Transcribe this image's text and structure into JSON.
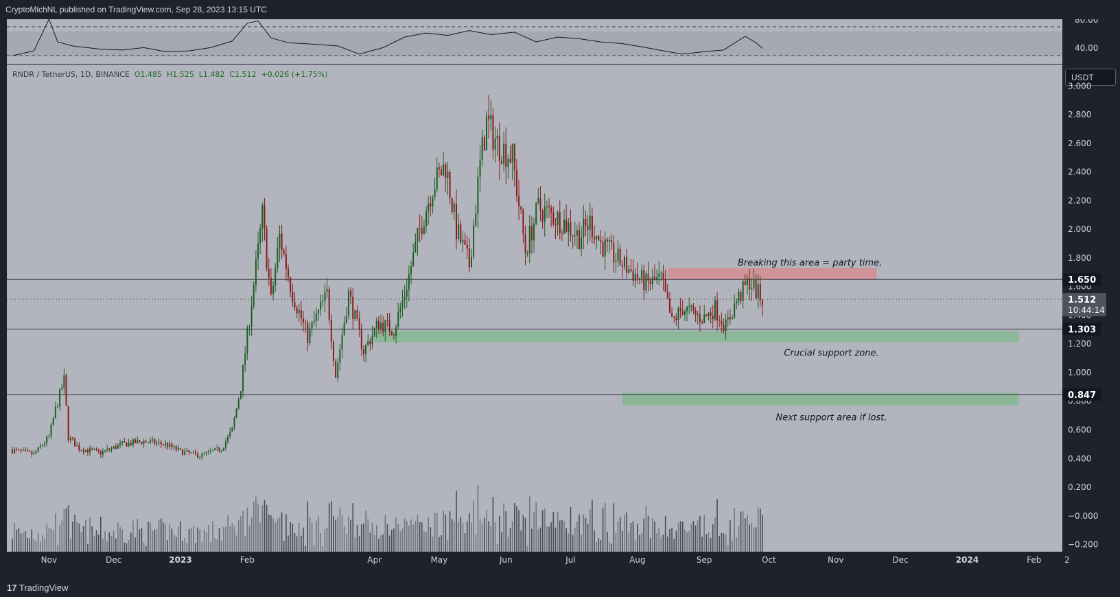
{
  "header": {
    "published": "CryptoMichNL published on TradingView.com, Sep 28, 2023 13:15 UTC"
  },
  "footer": {
    "brand": "TradingView"
  },
  "legend": {
    "symbol": "RNDR / TetherUS, 1D, BINANCE",
    "open": "O1.485",
    "high": "H1.525",
    "low": "L1.482",
    "close": "C1.512",
    "change": "+0.026 (+1.75%)"
  },
  "currency_button": "USDT",
  "colors": {
    "up": "#1b5e20",
    "down": "#8b1a1a",
    "resistance": "#d8888b",
    "support": "#7fb88b",
    "pane_bg": "#b2b5be"
  },
  "chart_data": [
    {
      "type": "line",
      "name": "RSI",
      "y_ticks": [
        "80.00",
        "40.00"
      ],
      "ylim": [
        30,
        85
      ],
      "bands": [
        40,
        70
      ],
      "x": [
        "2022-10-15",
        "2022-10-25",
        "2022-11-01",
        "2022-11-05",
        "2022-11-12",
        "2022-11-25",
        "2022-12-05",
        "2022-12-15",
        "2022-12-25",
        "2023-01-05",
        "2023-01-15",
        "2023-01-25",
        "2023-02-01",
        "2023-02-06",
        "2023-02-12",
        "2023-02-20",
        "2023-03-05",
        "2023-03-15",
        "2023-03-25",
        "2023-04-05",
        "2023-04-15",
        "2023-04-25",
        "2023-05-05",
        "2023-05-15",
        "2023-05-25",
        "2023-06-05",
        "2023-06-15",
        "2023-06-25",
        "2023-07-05",
        "2023-07-15",
        "2023-07-25",
        "2023-08-05",
        "2023-08-15",
        "2023-08-22",
        "2023-09-01",
        "2023-09-10",
        "2023-09-20",
        "2023-09-25",
        "2023-09-28"
      ],
      "y": [
        40,
        46,
        85,
        57,
        52,
        48,
        47,
        50,
        45,
        46,
        50,
        58,
        80,
        83,
        62,
        56,
        54,
        52,
        42,
        50,
        63,
        68,
        65,
        71,
        66,
        69,
        57,
        63,
        61,
        57,
        55,
        50,
        45,
        42,
        45,
        47,
        64,
        56,
        49
      ]
    },
    {
      "type": "candlestick",
      "title": "RNDR / TetherUS, 1D, BINANCE",
      "ylim": [
        -0.25,
        3.15
      ],
      "y_ticks": [
        "3.000",
        "2.800",
        "2.600",
        "2.400",
        "2.200",
        "2.000",
        "1.800",
        "1.600",
        "1.400",
        "1.200",
        "1.000",
        "0.800",
        "0.600",
        "0.400",
        "0.200",
        "−0.000",
        "−0.200"
      ],
      "x_ticks": [
        "Nov",
        "Dec",
        "2023",
        "Feb",
        "Apr",
        "May",
        "Jun",
        "Jul",
        "Aug",
        "Sep",
        "Oct",
        "Nov",
        "Dec",
        "2024",
        "Feb",
        "2"
      ],
      "x_range": [
        "2022-10-15",
        "2024-02-03"
      ],
      "close_path": [
        [
          "2022-10-15",
          0.46
        ],
        [
          "2022-10-25",
          0.43
        ],
        [
          "2022-11-01",
          0.55
        ],
        [
          "2022-11-04",
          0.74
        ],
        [
          "2022-11-08",
          0.95
        ],
        [
          "2022-11-10",
          0.55
        ],
        [
          "2022-11-15",
          0.47
        ],
        [
          "2022-11-25",
          0.44
        ],
        [
          "2022-12-05",
          0.5
        ],
        [
          "2022-12-15",
          0.52
        ],
        [
          "2022-12-25",
          0.5
        ],
        [
          "2023-01-01",
          0.45
        ],
        [
          "2023-01-10",
          0.42
        ],
        [
          "2023-01-20",
          0.47
        ],
        [
          "2023-01-25",
          0.6
        ],
        [
          "2023-01-29",
          0.9
        ],
        [
          "2023-02-03",
          1.5
        ],
        [
          "2023-02-06",
          1.85
        ],
        [
          "2023-02-08",
          2.1
        ],
        [
          "2023-02-12",
          1.5
        ],
        [
          "2023-02-16",
          1.95
        ],
        [
          "2023-02-22",
          1.55
        ],
        [
          "2023-03-01",
          1.25
        ],
        [
          "2023-03-10",
          1.55
        ],
        [
          "2023-03-14",
          0.98
        ],
        [
          "2023-03-20",
          1.55
        ],
        [
          "2023-03-27",
          1.15
        ],
        [
          "2023-04-03",
          1.35
        ],
        [
          "2023-04-10",
          1.3
        ],
        [
          "2023-04-15",
          1.55
        ],
        [
          "2023-04-22",
          2.0
        ],
        [
          "2023-04-28",
          2.3
        ],
        [
          "2023-05-04",
          2.45
        ],
        [
          "2023-05-09",
          2.0
        ],
        [
          "2023-05-15",
          1.75
        ],
        [
          "2023-05-20",
          2.45
        ],
        [
          "2023-05-23",
          2.75
        ],
        [
          "2023-05-28",
          2.6
        ],
        [
          "2023-06-04",
          2.5
        ],
        [
          "2023-06-10",
          1.85
        ],
        [
          "2023-06-16",
          2.15
        ],
        [
          "2023-06-22",
          2.1
        ],
        [
          "2023-06-28",
          2.05
        ],
        [
          "2023-07-05",
          1.95
        ],
        [
          "2023-07-10",
          2.05
        ],
        [
          "2023-07-15",
          1.9
        ],
        [
          "2023-07-22",
          1.8
        ],
        [
          "2023-07-28",
          1.72
        ],
        [
          "2023-08-05",
          1.62
        ],
        [
          "2023-08-12",
          1.65
        ],
        [
          "2023-08-17",
          1.35
        ],
        [
          "2023-08-22",
          1.45
        ],
        [
          "2023-08-28",
          1.4
        ],
        [
          "2023-09-01",
          1.38
        ],
        [
          "2023-09-06",
          1.45
        ],
        [
          "2023-09-11",
          1.32
        ],
        [
          "2023-09-16",
          1.5
        ],
        [
          "2023-09-22",
          1.64
        ],
        [
          "2023-09-26",
          1.55
        ],
        [
          "2023-09-28",
          1.51
        ]
      ],
      "volume_scale": "relative",
      "horizontal_lines": [
        {
          "price": 1.65,
          "label": "1.650"
        },
        {
          "price": 1.303,
          "label": "1.303"
        },
        {
          "price": 0.847,
          "label": "0.847"
        }
      ],
      "current_price": {
        "price": 1.512,
        "label": "1.512",
        "countdown": "10:44:14"
      },
      "zones": [
        {
          "kind": "resistance",
          "from_date": "2023-08-15",
          "to_date": "2023-11-20",
          "low": 1.65,
          "high": 1.73
        },
        {
          "kind": "support",
          "from_date": "2023-04-01",
          "to_date": "2024-01-25",
          "low": 1.21,
          "high": 1.29
        },
        {
          "kind": "support",
          "from_date": "2023-07-25",
          "to_date": "2024-01-25",
          "low": 0.77,
          "high": 0.86
        }
      ],
      "annotations": [
        {
          "text": "Breaking this area = party time.",
          "date": "2023-10-20",
          "price": 1.77
        },
        {
          "text": "Crucial support zone.",
          "date": "2023-10-30",
          "price": 1.14
        },
        {
          "text": "Next support area if lost.",
          "date": "2023-10-30",
          "price": 0.69
        }
      ]
    }
  ]
}
